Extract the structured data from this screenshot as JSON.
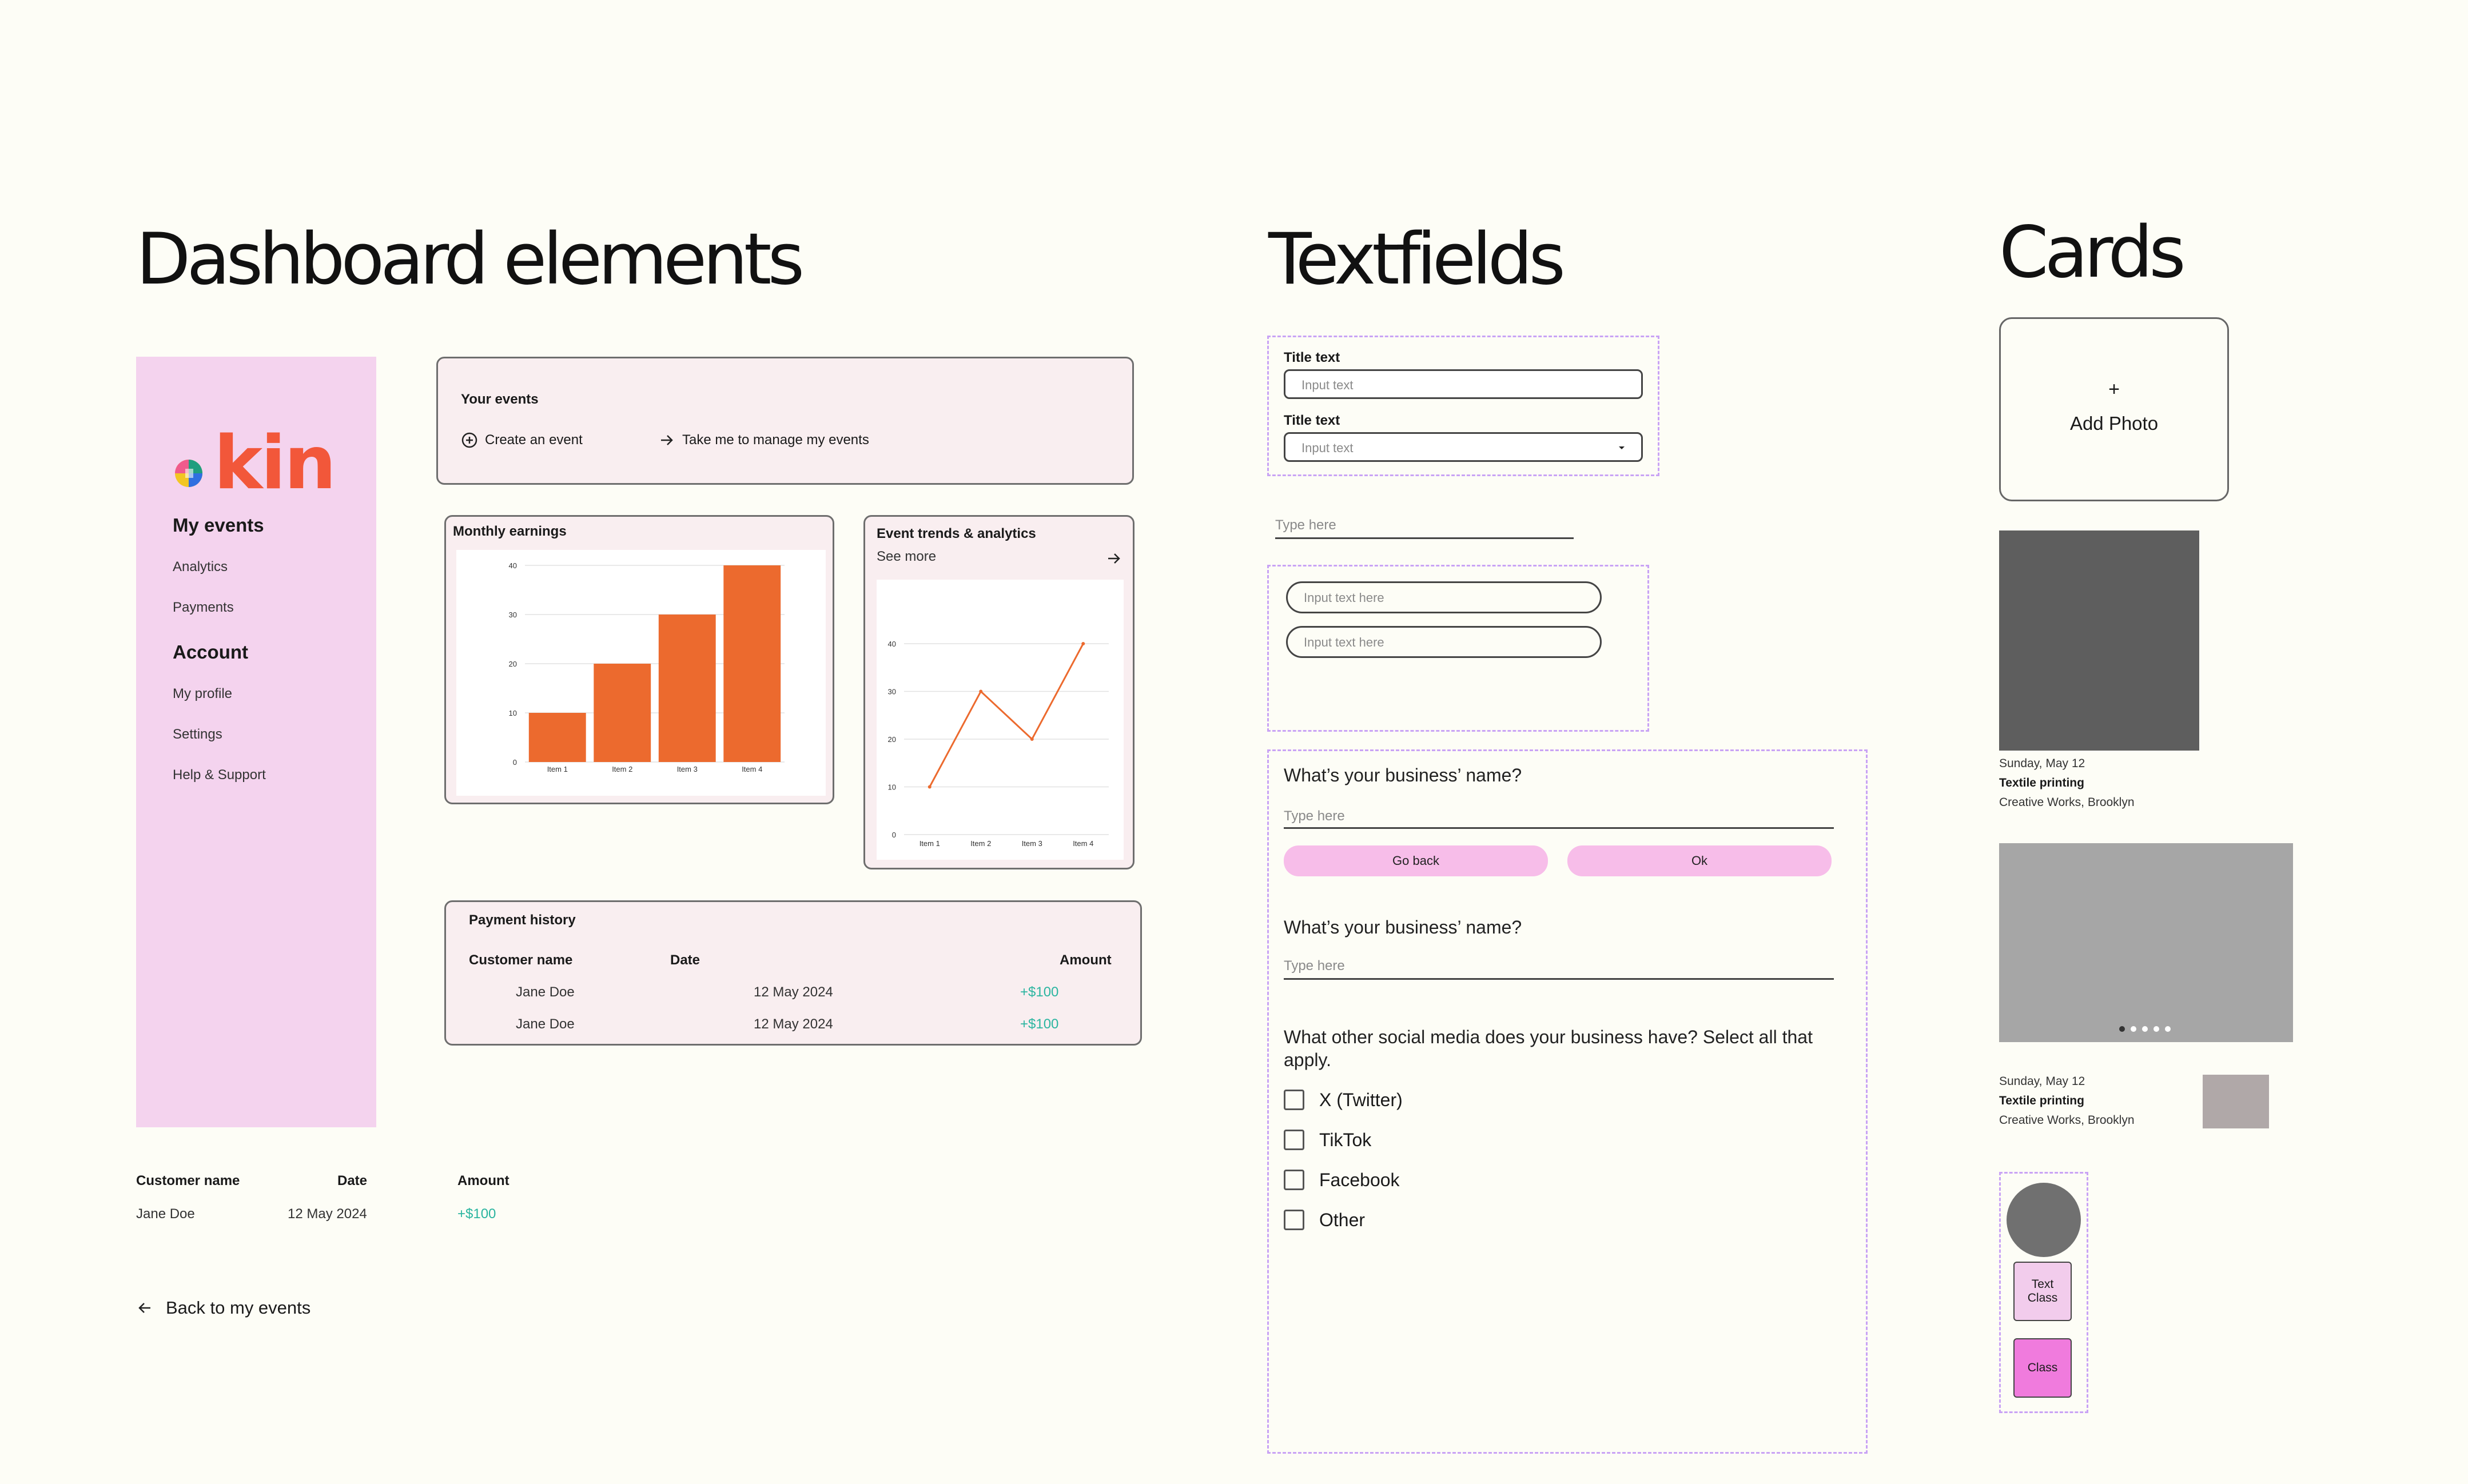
{
  "headings": {
    "dashboard": "Dashboard elements",
    "textfields": "Textfields",
    "cards": "Cards"
  },
  "sidebar": {
    "logo": "kin",
    "sections": [
      {
        "title": "My events",
        "items": [
          "Analytics",
          "Payments"
        ]
      },
      {
        "title": "Account",
        "items": [
          "My profile",
          "Settings",
          "Help & Support"
        ]
      }
    ]
  },
  "your_events": {
    "title": "Your events",
    "create": "Create an event",
    "manage": "Take me to manage my events"
  },
  "monthly": {
    "title": "Monthly earnings"
  },
  "trends": {
    "title": "Event trends & analytics",
    "see_more": "See more"
  },
  "chart_data": [
    {
      "type": "bar",
      "categories": [
        "Item 1",
        "Item 2",
        "Item 3",
        "Item 4"
      ],
      "values": [
        10,
        20,
        30,
        40
      ],
      "ylim": [
        0,
        40
      ],
      "yticks": [
        0,
        10,
        20,
        30,
        40
      ],
      "color": "#EC6A2E"
    },
    {
      "type": "line",
      "categories": [
        "Item 1",
        "Item 2",
        "Item 3",
        "Item 4"
      ],
      "values": [
        10,
        30,
        20,
        40
      ],
      "ylim": [
        0,
        40
      ],
      "yticks": [
        0,
        10,
        20,
        30,
        40
      ],
      "color": "#EC6A2E"
    }
  ],
  "payment_history": {
    "title": "Payment history",
    "headers": [
      "Customer name",
      "Date",
      "Amount"
    ],
    "rows": [
      {
        "name": "Jane Doe",
        "date": "12 May 2024",
        "amount": "+$100"
      },
      {
        "name": "Jane Doe",
        "date": "12 May 2024",
        "amount": "+$100"
      }
    ]
  },
  "mini_table": {
    "headers": [
      "Customer name",
      "Date",
      "Amount"
    ],
    "row": {
      "name": "Jane Doe",
      "date": "12 May 2024",
      "amount": "+$100"
    }
  },
  "back_link": "Back to my events",
  "textfields": {
    "title1": "Title text",
    "input1": "Input text",
    "title2": "Title text",
    "input2": "Input text",
    "underline_placeholder": "Type here",
    "pill1": "Input text here",
    "pill2": "Input text here"
  },
  "form": {
    "q1": "What’s your business’ name?",
    "q1_placeholder": "Type here",
    "back": "Go back",
    "ok": "Ok",
    "q2": "What’s your business’ name?",
    "q2_placeholder": "Type here",
    "q3": "What other social media does your business have? Select all that apply.",
    "options": [
      "X (Twitter)",
      "TikTok",
      "Facebook",
      "Other"
    ]
  },
  "cards": {
    "add_photo_plus": "+",
    "add_photo": "Add Photo",
    "card1": {
      "date": "Sunday, May 12",
      "title": "Textile printing",
      "location": "Creative Works, Brooklyn",
      "image_color": "#5E5E5E"
    },
    "card2": {
      "image_color": "#A6A6A6"
    },
    "card3": {
      "date": "Sunday, May 12",
      "title": "Textile printing",
      "location": "Creative Works, Brooklyn",
      "thumb_color": "#B0A8A8"
    },
    "class1_line1": "Text",
    "class1_line2": "Class",
    "class2": "Class"
  }
}
